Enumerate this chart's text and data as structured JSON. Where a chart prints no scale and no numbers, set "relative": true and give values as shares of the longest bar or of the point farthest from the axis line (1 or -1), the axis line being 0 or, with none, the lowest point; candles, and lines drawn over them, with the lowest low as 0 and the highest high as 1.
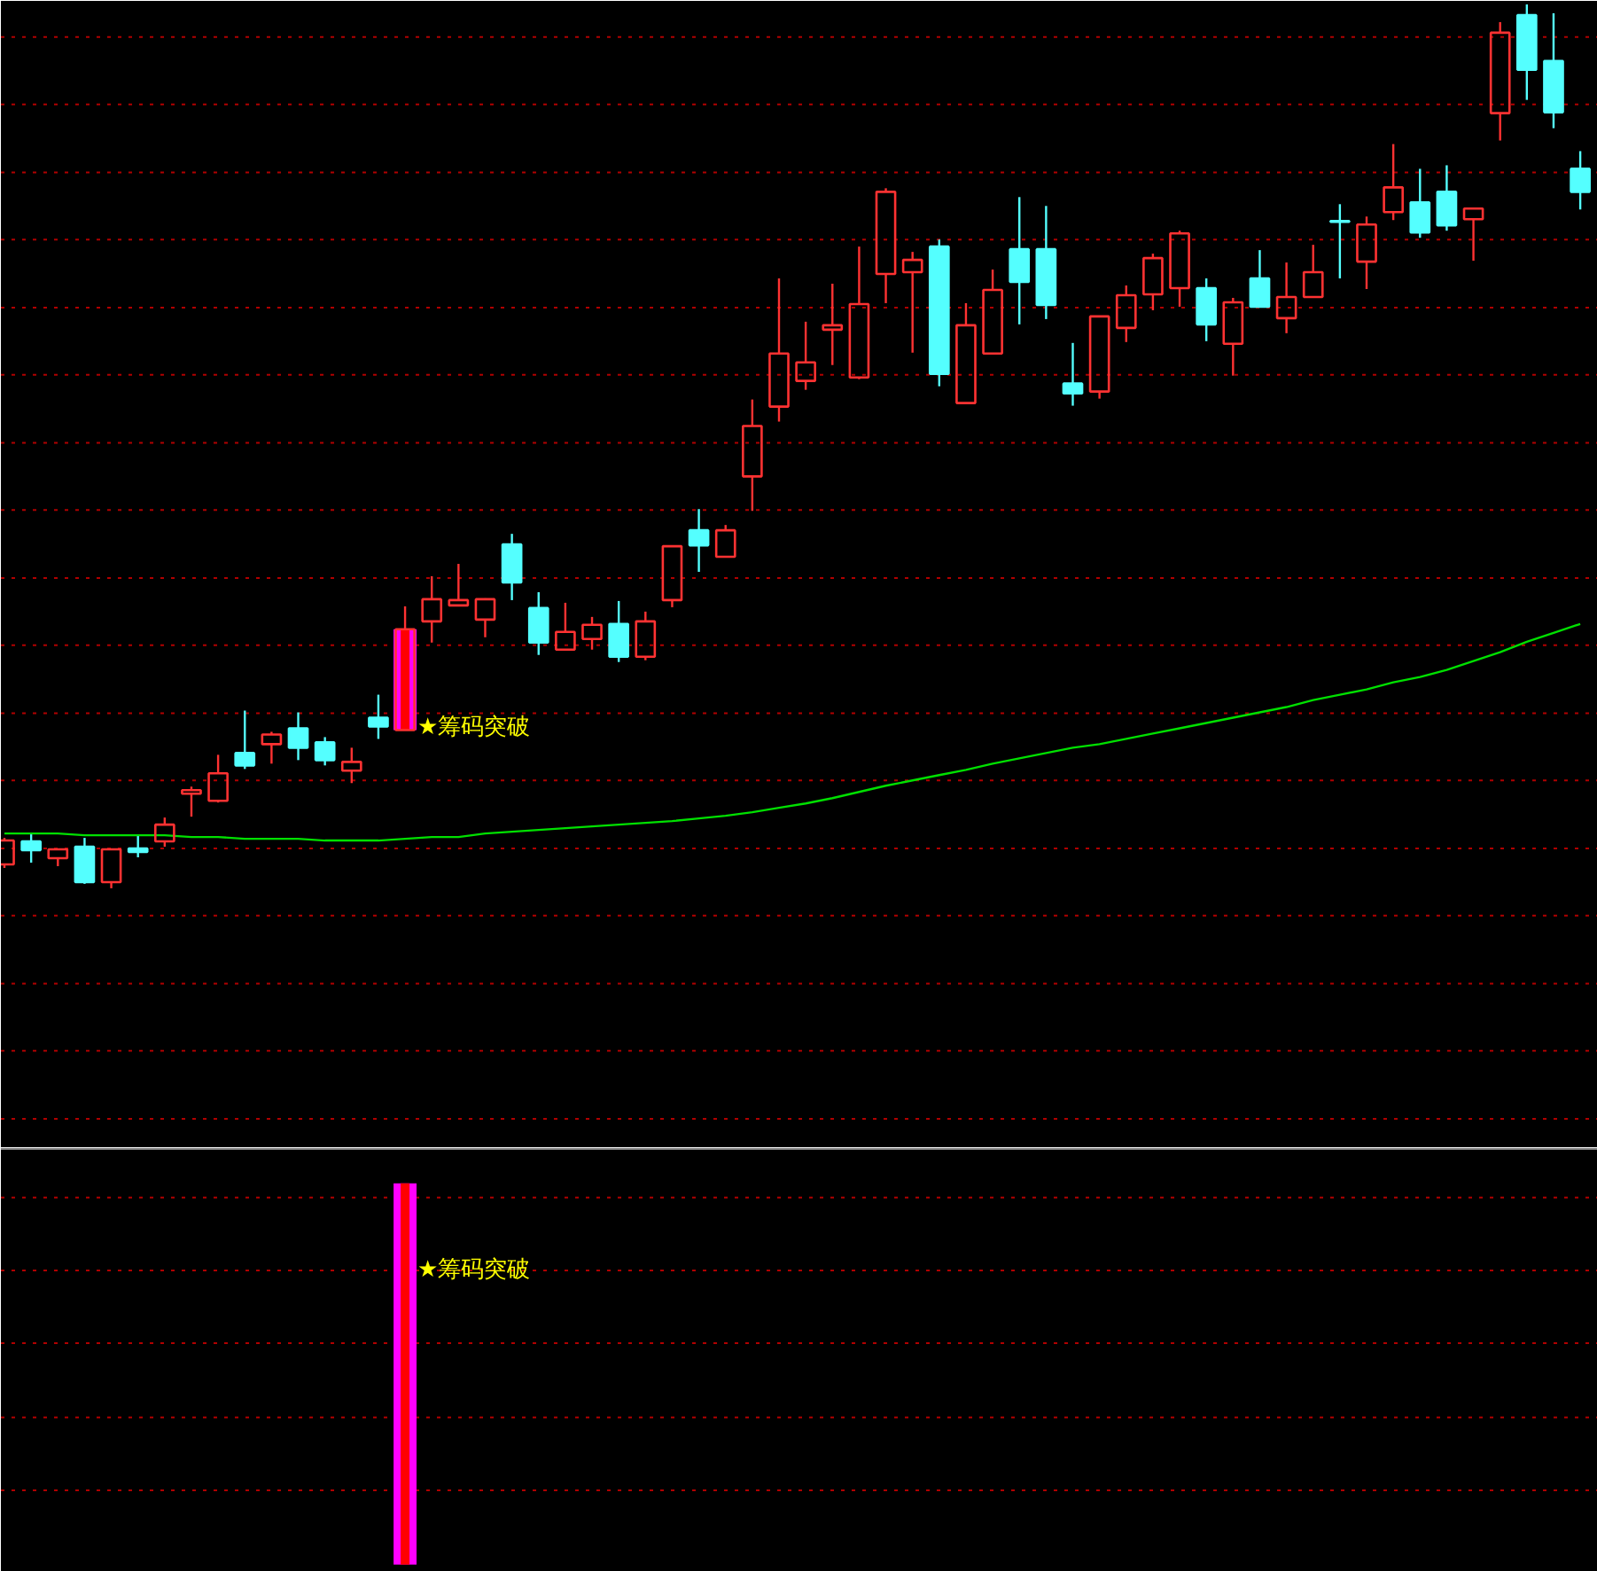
{
  "chart_data": [
    {
      "type": "candlestick",
      "relative": true,
      "tick_labels": false,
      "categories": [
        null,
        null,
        null,
        null,
        null,
        null,
        null,
        null,
        null,
        null,
        null,
        null,
        null,
        null,
        null,
        null,
        null,
        null,
        null,
        null,
        null,
        null,
        null,
        null,
        null,
        null,
        null,
        null,
        null,
        null,
        null,
        null,
        null,
        null,
        null,
        null,
        null,
        null,
        null,
        null,
        null,
        null,
        null,
        null,
        null,
        null,
        null,
        null,
        null,
        null,
        null,
        null,
        null,
        null,
        null,
        null,
        null,
        null,
        null,
        null
      ],
      "ohlc": [
        [
          0.027,
          0.057,
          0.023,
          0.054
        ],
        [
          0.053,
          0.061,
          0.029,
          0.043
        ],
        [
          0.034,
          0.044,
          0.025,
          0.044
        ],
        [
          0.047,
          0.057,
          0.005,
          0.007
        ],
        [
          0.007,
          0.044,
          0,
          0.044
        ],
        [
          0.045,
          0.059,
          0.035,
          0.041
        ],
        [
          0.053,
          0.08,
          0.047,
          0.072
        ],
        [
          0.107,
          0.115,
          0.081,
          0.111
        ],
        [
          0.099,
          0.151,
          0.097,
          0.13
        ],
        [
          0.153,
          0.201,
          0.135,
          0.139
        ],
        [
          0.163,
          0.177,
          0.141,
          0.174
        ],
        [
          0.181,
          0.199,
          0.145,
          0.159
        ],
        [
          0.165,
          0.171,
          0.139,
          0.145
        ],
        [
          0.133,
          0.159,
          0.119,
          0.143
        ],
        [
          0.193,
          0.219,
          0.169,
          0.183
        ],
        [
          0.179,
          0.319,
          0.179,
          0.293
        ],
        [
          0.302,
          0.353,
          0.278,
          0.327
        ],
        [
          0.32,
          0.367,
          0.32,
          0.326
        ],
        [
          0.304,
          0.328,
          0.284,
          0.327
        ],
        [
          0.389,
          0.401,
          0.326,
          0.346
        ],
        [
          0.317,
          0.335,
          0.264,
          0.278
        ],
        [
          0.27,
          0.323,
          0.27,
          0.29
        ],
        [
          0.282,
          0.307,
          0.27,
          0.298
        ],
        [
          0.299,
          0.325,
          0.256,
          0.262
        ],
        [
          0.262,
          0.313,
          0.258,
          0.302
        ],
        [
          0.326,
          0.387,
          0.318,
          0.387
        ],
        [
          0.405,
          0.429,
          0.358,
          0.388
        ],
        [
          0.375,
          0.411,
          0.375,
          0.405
        ],
        [
          0.466,
          0.553,
          0.427,
          0.523
        ],
        [
          0.545,
          0.69,
          0.528,
          0.605
        ],
        [
          0.574,
          0.641,
          0.564,
          0.595
        ],
        [
          0.632,
          0.684,
          0.592,
          0.637
        ],
        [
          0.578,
          0.726,
          0.576,
          0.661
        ],
        [
          0.695,
          0.792,
          0.662,
          0.788
        ],
        [
          0.697,
          0.72,
          0.606,
          0.711
        ],
        [
          0.726,
          0.734,
          0.568,
          0.582
        ],
        [
          0.549,
          0.662,
          0.549,
          0.637
        ],
        [
          0.605,
          0.7,
          0.605,
          0.677
        ],
        [
          0.723,
          0.782,
          0.638,
          0.686
        ],
        [
          0.723,
          0.772,
          0.644,
          0.66
        ],
        [
          0.571,
          0.617,
          0.546,
          0.56
        ],
        [
          0.562,
          0.647,
          0.554,
          0.647
        ],
        [
          0.634,
          0.682,
          0.618,
          0.671
        ],
        [
          0.672,
          0.718,
          0.654,
          0.713
        ],
        [
          0.679,
          0.744,
          0.658,
          0.741
        ],
        [
          0.679,
          0.69,
          0.619,
          0.638
        ],
        [
          0.616,
          0.668,
          0.58,
          0.663
        ],
        [
          0.69,
          0.722,
          0.658,
          0.658
        ],
        [
          0.645,
          0.708,
          0.628,
          0.669
        ],
        [
          0.669,
          0.728,
          0.669,
          0.697
        ],
        [
          0.755,
          0.774,
          0.69,
          0.754
        ],
        [
          0.709,
          0.76,
          0.678,
          0.751
        ],
        [
          0.765,
          0.842,
          0.756,
          0.793
        ],
        [
          0.776,
          0.814,
          0.736,
          0.742
        ],
        [
          0.788,
          0.818,
          0.744,
          0.75
        ],
        [
          0.757,
          0.769,
          0.71,
          0.769
        ],
        [
          0.877,
          0.98,
          0.846,
          0.968
        ],
        [
          0.988,
          1,
          0.892,
          0.926
        ],
        [
          0.936,
          0.99,
          0.86,
          0.878
        ],
        [
          0.814,
          0.834,
          0.768,
          0.788
        ]
      ],
      "colors": [
        "#ff3232",
        "#54ffff",
        "#ff3232",
        "#54ffff",
        "#ff3232",
        "#54ffff",
        "#ff3232",
        "#ff3232",
        "#ff3232",
        "#54ffff",
        "#ff3232",
        "#54ffff",
        "#54ffff",
        "#ff3232",
        "#54ffff",
        "#ff3232",
        "#ff3232",
        "#ff3232",
        "#ff3232",
        "#54ffff",
        "#54ffff",
        "#ff3232",
        "#ff3232",
        "#54ffff",
        "#ff3232",
        "#ff3232",
        "#54ffff",
        "#ff3232",
        "#ff3232",
        "#ff3232",
        "#ff3232",
        "#ff3232",
        "#ff3232",
        "#ff3232",
        "#ff3232",
        "#54ffff",
        "#ff3232",
        "#ff3232",
        "#54ffff",
        "#54ffff",
        "#54ffff",
        "#ff3232",
        "#ff3232",
        "#ff3232",
        "#ff3232",
        "#54ffff",
        "#ff3232",
        "#54ffff",
        "#ff3232",
        "#ff3232",
        "#54ffff",
        "#ff3232",
        "#ff3232",
        "#54ffff",
        "#54ffff",
        "#ff3232",
        "#ff3232",
        "#54ffff",
        "#54ffff",
        "#54ffff"
      ],
      "series": [
        {
          "type": "line",
          "color": "#00e000",
          "values": [
            0.062,
            0.062,
            0.062,
            0.06,
            0.06,
            0.06,
            0.06,
            0.058,
            0.058,
            0.056,
            0.056,
            0.056,
            0.054,
            0.054,
            0.054,
            0.056,
            0.058,
            0.058,
            0.062,
            0.064,
            0.066,
            0.068,
            0.07,
            0.072,
            0.074,
            0.076,
            0.079,
            0.082,
            0.086,
            0.091,
            0.096,
            0.102,
            0.109,
            0.116,
            0.122,
            0.128,
            0.134,
            0.141,
            0.147,
            0.153,
            0.159,
            0.163,
            0.169,
            0.175,
            0.181,
            0.187,
            0.193,
            0.199,
            0.205,
            0.213,
            0.219,
            0.225,
            0.233,
            0.239,
            0.247,
            0.257,
            0.267,
            0.279,
            0.289,
            0.299
          ]
        },
        {
          "type": "bar",
          "color": "#ff00ff",
          "values": [
            null,
            null,
            null,
            null,
            null,
            null,
            null,
            null,
            null,
            null,
            null,
            null,
            null,
            null,
            null,
            0.114,
            null,
            null,
            null,
            null,
            null,
            null,
            null,
            null,
            null,
            null,
            null,
            null,
            null,
            null,
            null,
            null,
            null,
            null,
            null,
            null,
            null,
            null,
            null,
            null,
            null,
            null,
            null,
            null,
            null,
            null,
            null,
            null,
            null,
            null,
            null,
            null,
            null,
            null,
            null,
            null,
            null,
            null,
            null,
            null
          ],
          "base": [
            null,
            null,
            null,
            null,
            null,
            null,
            null,
            null,
            null,
            null,
            null,
            null,
            null,
            null,
            null,
            0.179,
            null,
            null,
            null,
            null,
            null,
            null,
            null,
            null,
            null,
            null,
            null,
            null,
            null,
            null,
            null,
            null,
            null,
            null,
            null,
            null,
            null,
            null,
            null,
            null,
            null,
            null,
            null,
            null,
            null,
            null,
            null,
            null,
            null,
            null,
            null,
            null,
            null,
            null,
            null,
            null,
            null,
            null,
            null,
            null
          ]
        },
        {
          "type": "bar",
          "color": "#ff0000",
          "values": [
            null,
            null,
            null,
            null,
            null,
            null,
            null,
            null,
            null,
            null,
            null,
            null,
            null,
            null,
            null,
            0.114,
            null,
            null,
            null,
            null,
            null,
            null,
            null,
            null,
            null,
            null,
            null,
            null,
            null,
            null,
            null,
            null,
            null,
            null,
            null,
            null,
            null,
            null,
            null,
            null,
            null,
            null,
            null,
            null,
            null,
            null,
            null,
            null,
            null,
            null,
            null,
            null,
            null,
            null,
            null,
            null,
            null,
            null,
            null,
            null
          ],
          "base": [
            null,
            null,
            null,
            null,
            null,
            null,
            null,
            null,
            null,
            null,
            null,
            null,
            null,
            null,
            null,
            0.179,
            null,
            null,
            null,
            null,
            null,
            null,
            null,
            null,
            null,
            null,
            null,
            null,
            null,
            null,
            null,
            null,
            null,
            null,
            null,
            null,
            null,
            null,
            null,
            null,
            null,
            null,
            null,
            null,
            null,
            null,
            null,
            null,
            null,
            null,
            null,
            null,
            null,
            null,
            null,
            null,
            null,
            null,
            null,
            null
          ]
        }
      ],
      "ref_lines": [
        {
          "axis": "y",
          "value": 0.963,
          "color": "#b00000",
          "line_style": "dotted"
        },
        {
          "axis": "y",
          "value": 0.887,
          "color": "#b00000",
          "line_style": "dotted"
        },
        {
          "axis": "y",
          "value": 0.81,
          "color": "#b00000",
          "line_style": "dotted"
        },
        {
          "axis": "y",
          "value": 0.734,
          "color": "#b00000",
          "line_style": "dotted"
        },
        {
          "axis": "y",
          "value": 0.657,
          "color": "#b00000",
          "line_style": "dotted"
        },
        {
          "axis": "y",
          "value": 0.581,
          "color": "#b00000",
          "line_style": "dotted"
        },
        {
          "axis": "y",
          "value": 0.504,
          "color": "#b00000",
          "line_style": "dotted"
        },
        {
          "axis": "y",
          "value": 0.428,
          "color": "#b00000",
          "line_style": "dotted"
        },
        {
          "axis": "y",
          "value": 0.351,
          "color": "#b00000",
          "line_style": "dotted"
        },
        {
          "axis": "y",
          "value": 0.275,
          "color": "#b00000",
          "line_style": "dotted"
        },
        {
          "axis": "y",
          "value": 0.198,
          "color": "#b00000",
          "line_style": "dotted"
        },
        {
          "axis": "y",
          "value": 0.122,
          "color": "#b00000",
          "line_style": "dotted"
        },
        {
          "axis": "y",
          "value": 0.045,
          "color": "#b00000",
          "line_style": "dotted"
        },
        {
          "axis": "y",
          "value": -0.031,
          "color": "#b00000",
          "line_style": "dotted"
        },
        {
          "axis": "y",
          "value": -0.108,
          "color": "#b00000",
          "line_style": "dotted"
        },
        {
          "axis": "y",
          "value": -0.184,
          "color": "#b00000",
          "line_style": "dotted"
        },
        {
          "axis": "y",
          "value": -0.261,
          "color": "#b00000",
          "line_style": "dotted"
        }
      ],
      "annotations": [
        "★筹码突破"
      ]
    },
    {
      "type": "bar",
      "relative": true,
      "tick_labels": false,
      "categories": [
        null,
        null,
        null,
        null,
        null,
        null,
        null,
        null,
        null,
        null,
        null,
        null,
        null,
        null,
        null,
        null,
        null,
        null,
        null,
        null,
        null,
        null,
        null,
        null,
        null,
        null,
        null,
        null,
        null,
        null,
        null,
        null,
        null,
        null,
        null,
        null,
        null,
        null,
        null,
        null,
        null,
        null,
        null,
        null,
        null,
        null,
        null,
        null,
        null,
        null,
        null,
        null,
        null,
        null,
        null,
        null,
        null,
        null,
        null,
        null
      ],
      "series": [
        {
          "color": "#ff00ff",
          "values": [
            null,
            null,
            null,
            null,
            null,
            null,
            null,
            null,
            null,
            null,
            null,
            null,
            null,
            null,
            null,
            1,
            null,
            null,
            null,
            null,
            null,
            null,
            null,
            null,
            null,
            null,
            null,
            null,
            null,
            null,
            null,
            null,
            null,
            null,
            null,
            null,
            null,
            null,
            null,
            null,
            null,
            null,
            null,
            null,
            null,
            null,
            null,
            null,
            null,
            null,
            null,
            null,
            null,
            null,
            null,
            null,
            null,
            null,
            null,
            null
          ]
        },
        {
          "color": "#ff0000",
          "values": [
            null,
            null,
            null,
            null,
            null,
            null,
            null,
            null,
            null,
            null,
            null,
            null,
            null,
            null,
            null,
            1,
            null,
            null,
            null,
            null,
            null,
            null,
            null,
            null,
            null,
            null,
            null,
            null,
            null,
            null,
            null,
            null,
            null,
            null,
            null,
            null,
            null,
            null,
            null,
            null,
            null,
            null,
            null,
            null,
            null,
            null,
            null,
            null,
            null,
            null,
            null,
            null,
            null,
            null,
            null,
            null,
            null,
            null,
            null,
            null
          ]
        }
      ],
      "ref_lines": [
        {
          "axis": "y",
          "value": 0.963,
          "color": "#b00000",
          "line_style": "dotted"
        },
        {
          "axis": "y",
          "value": 0.772,
          "color": "#b00000",
          "line_style": "dotted"
        },
        {
          "axis": "y",
          "value": 0.581,
          "color": "#b00000",
          "line_style": "dotted"
        },
        {
          "axis": "y",
          "value": 0.386,
          "color": "#b00000",
          "line_style": "dotted"
        },
        {
          "axis": "y",
          "value": 0.195,
          "color": "#b00000",
          "line_style": "dotted"
        }
      ],
      "annotations": [
        "★筹码突破"
      ]
    }
  ]
}
